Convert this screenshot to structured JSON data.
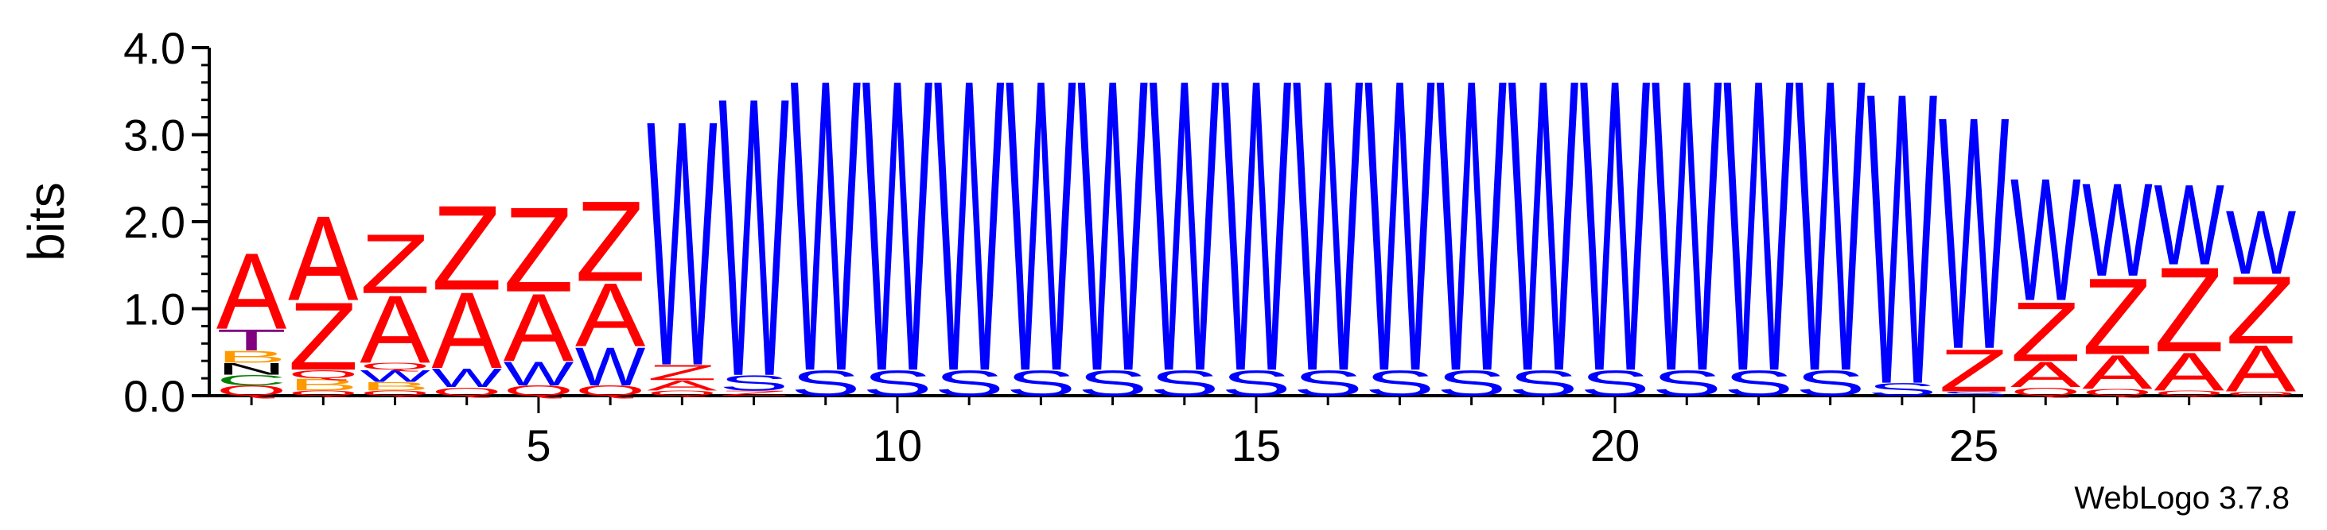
{
  "chart_data": {
    "type": "sequence-logo",
    "ylabel": "bits",
    "ylim": [
      0,
      4.0
    ],
    "y_ticks": [
      "0.0",
      "1.0",
      "2.0",
      "3.0",
      "4.0"
    ],
    "x_ticks": [
      "5",
      "10",
      "15",
      "20",
      "25"
    ],
    "x_tick_positions": [
      5,
      10,
      15,
      20,
      25
    ],
    "positions": 29,
    "credit": "WebLogo 3.7.8",
    "colors": {
      "A": "#ff0000",
      "Z": "#ff0000",
      "Q": "#ff0000",
      "W": "#0000ff",
      "S": "#0000ff",
      "T": "#800080",
      "B": "#ff9900",
      "C": "#008000"
    },
    "columns": [
      {
        "pos": 1,
        "stack": [
          [
            "Q",
            0.12
          ],
          [
            "C",
            0.12
          ],
          [
            "N",
            0.14
          ],
          [
            "B",
            0.14
          ],
          [
            "T",
            0.25
          ],
          [
            "A",
            0.9
          ]
        ]
      },
      {
        "pos": 2,
        "stack": [
          [
            "Q",
            0.06
          ],
          [
            "B",
            0.14
          ],
          [
            "Q",
            0.1
          ],
          [
            "Z",
            0.8
          ],
          [
            "A",
            1.0
          ]
        ]
      },
      {
        "pos": 3,
        "stack": [
          [
            "Q",
            0.06
          ],
          [
            "B",
            0.1
          ],
          [
            "W",
            0.14
          ],
          [
            "Q",
            0.08
          ],
          [
            "A",
            0.8
          ],
          [
            "Z",
            0.7
          ]
        ]
      },
      {
        "pos": 4,
        "stack": [
          [
            "Q",
            0.1
          ],
          [
            "W",
            0.22
          ],
          [
            "A",
            0.9
          ],
          [
            "Z",
            1.0
          ]
        ]
      },
      {
        "pos": 5,
        "stack": [
          [
            "Q",
            0.12
          ],
          [
            "W",
            0.28
          ],
          [
            "A",
            0.8
          ],
          [
            "Z",
            1.0
          ]
        ]
      },
      {
        "pos": 6,
        "stack": [
          [
            "Q",
            0.12
          ],
          [
            "W",
            0.45
          ],
          [
            "A",
            0.75
          ],
          [
            "Z",
            0.95
          ]
        ]
      },
      {
        "pos": 7,
        "stack": [
          [
            "Q",
            0.06
          ],
          [
            "A",
            0.12
          ],
          [
            "Z",
            0.18
          ],
          [
            "W",
            2.9
          ]
        ]
      },
      {
        "pos": 8,
        "stack": [
          [
            "Z",
            0.06
          ],
          [
            "S",
            0.18
          ],
          [
            "W",
            3.3
          ]
        ]
      },
      {
        "pos": 9,
        "stack": [
          [
            "S",
            0.3
          ],
          [
            "W",
            3.45
          ]
        ]
      },
      {
        "pos": 10,
        "stack": [
          [
            "S",
            0.3
          ],
          [
            "W",
            3.45
          ]
        ]
      },
      {
        "pos": 11,
        "stack": [
          [
            "S",
            0.3
          ],
          [
            "W",
            3.45
          ]
        ]
      },
      {
        "pos": 12,
        "stack": [
          [
            "S",
            0.3
          ],
          [
            "W",
            3.45
          ]
        ]
      },
      {
        "pos": 13,
        "stack": [
          [
            "S",
            0.3
          ],
          [
            "W",
            3.45
          ]
        ]
      },
      {
        "pos": 14,
        "stack": [
          [
            "S",
            0.3
          ],
          [
            "W",
            3.45
          ]
        ]
      },
      {
        "pos": 15,
        "stack": [
          [
            "S",
            0.3
          ],
          [
            "W",
            3.45
          ]
        ]
      },
      {
        "pos": 16,
        "stack": [
          [
            "S",
            0.3
          ],
          [
            "W",
            3.45
          ]
        ]
      },
      {
        "pos": 17,
        "stack": [
          [
            "S",
            0.3
          ],
          [
            "W",
            3.45
          ]
        ]
      },
      {
        "pos": 18,
        "stack": [
          [
            "S",
            0.3
          ],
          [
            "W",
            3.45
          ]
        ]
      },
      {
        "pos": 19,
        "stack": [
          [
            "S",
            0.3
          ],
          [
            "W",
            3.45
          ]
        ]
      },
      {
        "pos": 20,
        "stack": [
          [
            "S",
            0.3
          ],
          [
            "W",
            3.45
          ]
        ]
      },
      {
        "pos": 21,
        "stack": [
          [
            "S",
            0.3
          ],
          [
            "W",
            3.45
          ]
        ]
      },
      {
        "pos": 22,
        "stack": [
          [
            "S",
            0.3
          ],
          [
            "W",
            3.45
          ]
        ]
      },
      {
        "pos": 23,
        "stack": [
          [
            "S",
            0.3
          ],
          [
            "W",
            3.45
          ]
        ]
      },
      {
        "pos": 24,
        "stack": [
          [
            "S",
            0.15
          ],
          [
            "W",
            3.45
          ]
        ]
      },
      {
        "pos": 25,
        "stack": [
          [
            "S",
            0.05
          ],
          [
            "Z",
            0.5
          ],
          [
            "W",
            2.75
          ]
        ]
      },
      {
        "pos": 26,
        "stack": [
          [
            "Q",
            0.1
          ],
          [
            "A",
            0.3
          ],
          [
            "Z",
            0.7
          ],
          [
            "W",
            1.45
          ]
        ]
      },
      {
        "pos": 27,
        "stack": [
          [
            "Q",
            0.08
          ],
          [
            "A",
            0.4
          ],
          [
            "Z",
            0.9
          ],
          [
            "W",
            1.1
          ]
        ]
      },
      {
        "pos": 28,
        "stack": [
          [
            "Q",
            0.06
          ],
          [
            "A",
            0.45
          ],
          [
            "Z",
            1.0
          ],
          [
            "W",
            0.95
          ]
        ]
      },
      {
        "pos": 29,
        "stack": [
          [
            "Q",
            0.05
          ],
          [
            "A",
            0.55
          ],
          [
            "Z",
            0.8
          ],
          [
            "W",
            0.75
          ]
        ]
      }
    ]
  }
}
